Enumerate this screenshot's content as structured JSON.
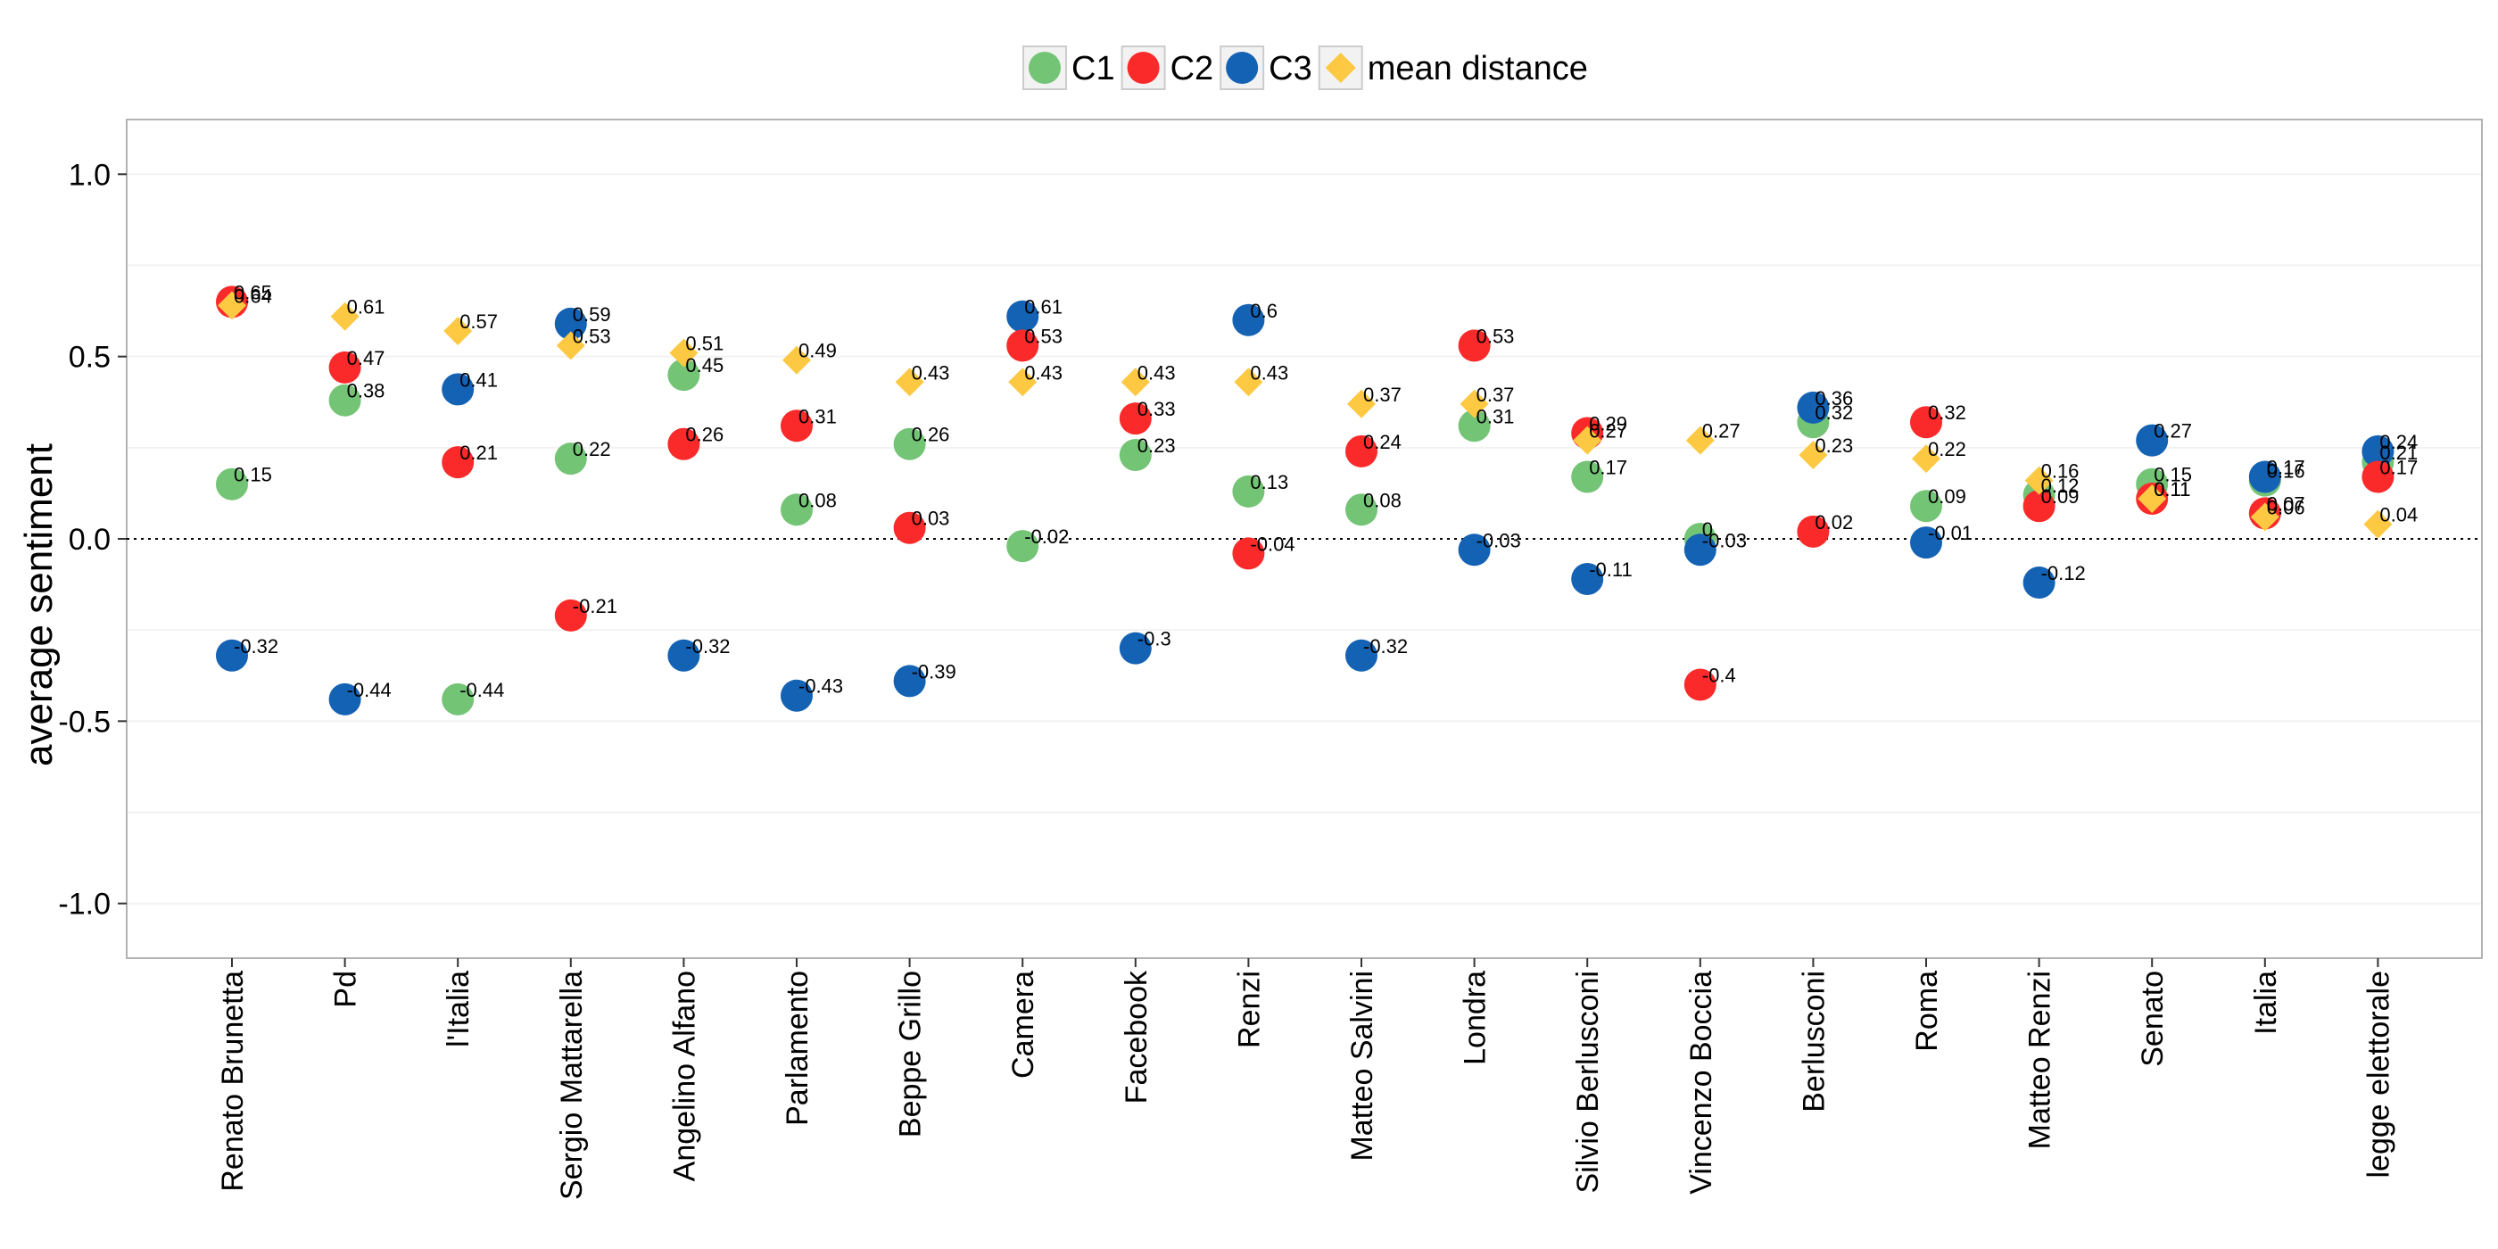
{
  "chart_data": {
    "type": "scatter",
    "ylabel": "average sentiment",
    "ylim": [
      -1.15,
      1.15
    ],
    "yticks": [
      1.0,
      0.5,
      0.0,
      -0.5,
      -1.0
    ],
    "ytick_labels": [
      "1.0",
      "0.5",
      "0.0",
      "-0.5",
      "-1.0"
    ],
    "reference_line": 0,
    "legend_position": "top",
    "categories": [
      "Renato Brunetta",
      "Pd",
      "l'Italia",
      "Sergio Mattarella",
      "Angelino Alfano",
      "Parlamento",
      "Beppe Grillo",
      "Camera",
      "Facebook",
      "Renzi",
      "Matteo Salvini",
      "Londra",
      "Silvio Berlusconi",
      "Vincenzo Boccia",
      "Berlusconi",
      "Roma",
      "Matteo Renzi",
      "Senato",
      "Italia",
      "legge elettorale"
    ],
    "series": [
      {
        "name": "C1",
        "shape": "circle",
        "color": "#74c476",
        "values": [
          0.15,
          0.38,
          -0.44,
          0.22,
          0.45,
          0.08,
          0.26,
          -0.02,
          0.23,
          0.13,
          0.08,
          0.31,
          0.17,
          0,
          0.32,
          0.09,
          0.12,
          0.15,
          0.16,
          0.21
        ],
        "labels": [
          "0.15",
          "0.38",
          "-0.44",
          "0.22",
          "0.45",
          "0.08",
          "0.26",
          "-0.02",
          "0.23",
          "0.13",
          "0.08",
          "0.31",
          "0.17",
          "0",
          "0.32",
          "0.09",
          "0.12",
          "0.15",
          "0.16",
          "0.21"
        ]
      },
      {
        "name": "C2",
        "shape": "circle",
        "color": "#fb2a2a",
        "values": [
          0.65,
          0.47,
          0.21,
          -0.21,
          0.26,
          0.31,
          0.03,
          0.53,
          0.33,
          -0.04,
          0.24,
          0.53,
          0.29,
          -0.4,
          0.02,
          0.32,
          0.09,
          0.11,
          0.07,
          0.17
        ],
        "labels": [
          "0.65",
          "0.47",
          "0.21",
          "-0.21",
          "0.26",
          "0.31",
          "0.03",
          "0.53",
          "0.33",
          "-0.04",
          "0.24",
          "0.53",
          "0.29",
          "-0.4",
          "0.02",
          "0.32",
          "0.09",
          "0.11",
          "0.07",
          "0.17"
        ]
      },
      {
        "name": "C3",
        "shape": "circle",
        "color": "#1462b4",
        "values": [
          -0.32,
          -0.44,
          0.41,
          0.59,
          -0.32,
          -0.43,
          -0.39,
          0.61,
          -0.3,
          0.6,
          -0.32,
          -0.03,
          -0.11,
          -0.03,
          0.36,
          -0.01,
          -0.12,
          0.27,
          0.17,
          0.24
        ],
        "labels": [
          "-0.32",
          "-0.44",
          "0.41",
          "0.59",
          "-0.32",
          "-0.43",
          "-0.39",
          "0.61",
          "-0.3",
          "0.6",
          "-0.32",
          "-0.03",
          "-0.11",
          "-0.03",
          "0.36",
          "-0.01",
          "-0.12",
          "0.27",
          "0.17",
          "0.24"
        ]
      },
      {
        "name": "mean distance",
        "shape": "diamond",
        "color": "#fdc943",
        "values": [
          0.64,
          0.61,
          0.57,
          0.53,
          0.51,
          0.49,
          0.43,
          0.43,
          0.43,
          0.43,
          0.37,
          0.37,
          0.27,
          0.27,
          0.23,
          0.22,
          0.16,
          0.11,
          0.06,
          0.04
        ],
        "labels": [
          "0.64",
          "0.61",
          "0.57",
          "0.53",
          "0.51",
          "0.49",
          "0.43",
          "0.43",
          "0.43",
          "0.43",
          "0.37",
          "0.37",
          "0.27",
          "0.27",
          "0.23",
          "0.22",
          "0.16",
          "0.11",
          "0.06",
          "0.04"
        ]
      }
    ]
  }
}
